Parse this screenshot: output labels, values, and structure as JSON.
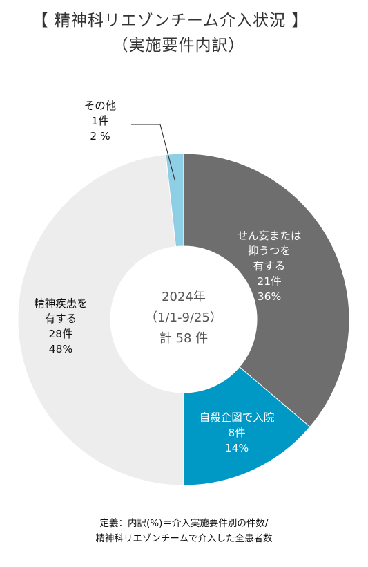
{
  "title": "【 精神科リエゾンチーム介入状況 】",
  "subtitle": "（実施要件内訳）",
  "center": {
    "line1": "2024年",
    "line2": "（1/1-9/25）",
    "line3": "計 58 件"
  },
  "footer": {
    "line1": "定義：内訳(%)＝介入実施要件別の件数/",
    "line2": "精神科リエゾンチームで介入した全患者数"
  },
  "chart_data": {
    "type": "pie",
    "donut": true,
    "total": 58,
    "slices": [
      {
        "name": "せん妄または抑うつを有する",
        "label_lines": [
          "せん妄または",
          "抑うつを",
          "有する",
          "21件",
          "36%"
        ],
        "count": 21,
        "percent": 36,
        "color": "#6e6e6e"
      },
      {
        "name": "自殺企図で入院",
        "label_lines": [
          "自殺企図で入院",
          "8件",
          "14%"
        ],
        "count": 8,
        "percent": 14,
        "color": "#0099c6"
      },
      {
        "name": "精神疾患を有する",
        "label_lines": [
          "精神疾患を",
          "有する",
          "28件",
          "48%"
        ],
        "count": 28,
        "percent": 48,
        "color": "#ededed"
      },
      {
        "name": "その他",
        "label_lines": [
          "その他",
          "1件",
          "2 %"
        ],
        "count": 1,
        "percent": 2,
        "color": "#8ecfe6"
      }
    ]
  }
}
